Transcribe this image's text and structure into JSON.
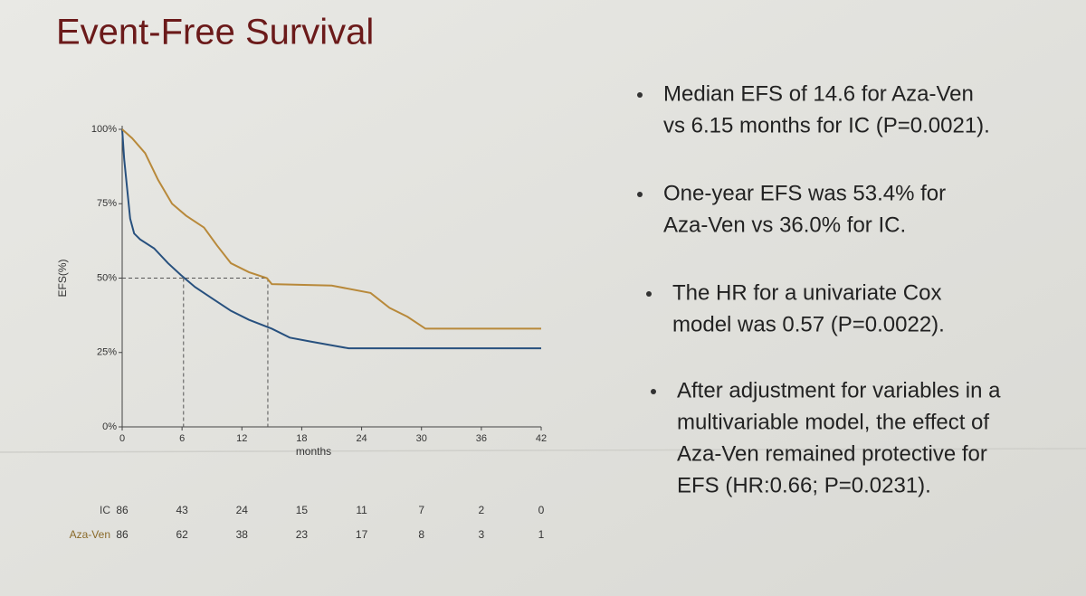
{
  "slide": {
    "title": "Event-Free Survival",
    "bullets": [
      [
        "Median EFS of 14.6 for Aza-Ven",
        "vs 6.15 months for IC (P=0.0021)."
      ],
      [
        "One-year EFS was 53.4% for",
        "Aza-Ven vs 36.0% for IC."
      ],
      [
        "The HR for a univariate Cox",
        "model was 0.57 (P=0.0022)."
      ],
      [
        "After adjustment for variables in a",
        "multivariable model, the effect of",
        "Aza-Ven remained protective for",
        "EFS (HR:0.66; P=0.0231)."
      ]
    ]
  },
  "chart_data": {
    "type": "line",
    "xlabel": "months",
    "ylabel": "EFS(%)",
    "xlim": [
      0,
      42
    ],
    "ylim": [
      0,
      100
    ],
    "xticks": [
      0,
      6,
      12,
      18,
      24,
      30,
      36,
      42
    ],
    "yticks": [
      {
        "value": 0,
        "label": "0%"
      },
      {
        "value": 25,
        "label": "25%"
      },
      {
        "value": 50,
        "label": "50%"
      },
      {
        "value": 75,
        "label": "75%"
      },
      {
        "value": 100,
        "label": "100%"
      }
    ],
    "median_lines": {
      "y": 50,
      "x": [
        6.15,
        14.6
      ]
    },
    "series": [
      {
        "name": "IC",
        "color": "#27507e",
        "x": [
          0,
          0.2,
          0.5,
          0.8,
          1.2,
          1.8,
          3.2,
          4.6,
          5.9,
          7.3,
          9.1,
          10.9,
          12.7,
          15,
          16.8,
          19,
          22.7,
          42
        ],
        "values": [
          100,
          90,
          80,
          70,
          65,
          63,
          60,
          55,
          51,
          47,
          43,
          39,
          36,
          33,
          30,
          28.6,
          26.4,
          26.4
        ],
        "at_risk": [
          86,
          43,
          24,
          15,
          11,
          7,
          2,
          0
        ]
      },
      {
        "name": "Aza-Ven",
        "color": "#b8893a",
        "x": [
          0,
          1,
          2.3,
          3.6,
          5,
          6.4,
          8.2,
          9.5,
          10.9,
          12.7,
          14.5,
          15,
          21,
          24.9,
          26.8,
          28.6,
          30.4,
          42
        ],
        "values": [
          100,
          97,
          92,
          83,
          75,
          71,
          67,
          61,
          55,
          52,
          50,
          48,
          47.5,
          45,
          40,
          37,
          33,
          33
        ],
        "at_risk": [
          86,
          62,
          38,
          23,
          17,
          8,
          3,
          1
        ]
      }
    ]
  }
}
